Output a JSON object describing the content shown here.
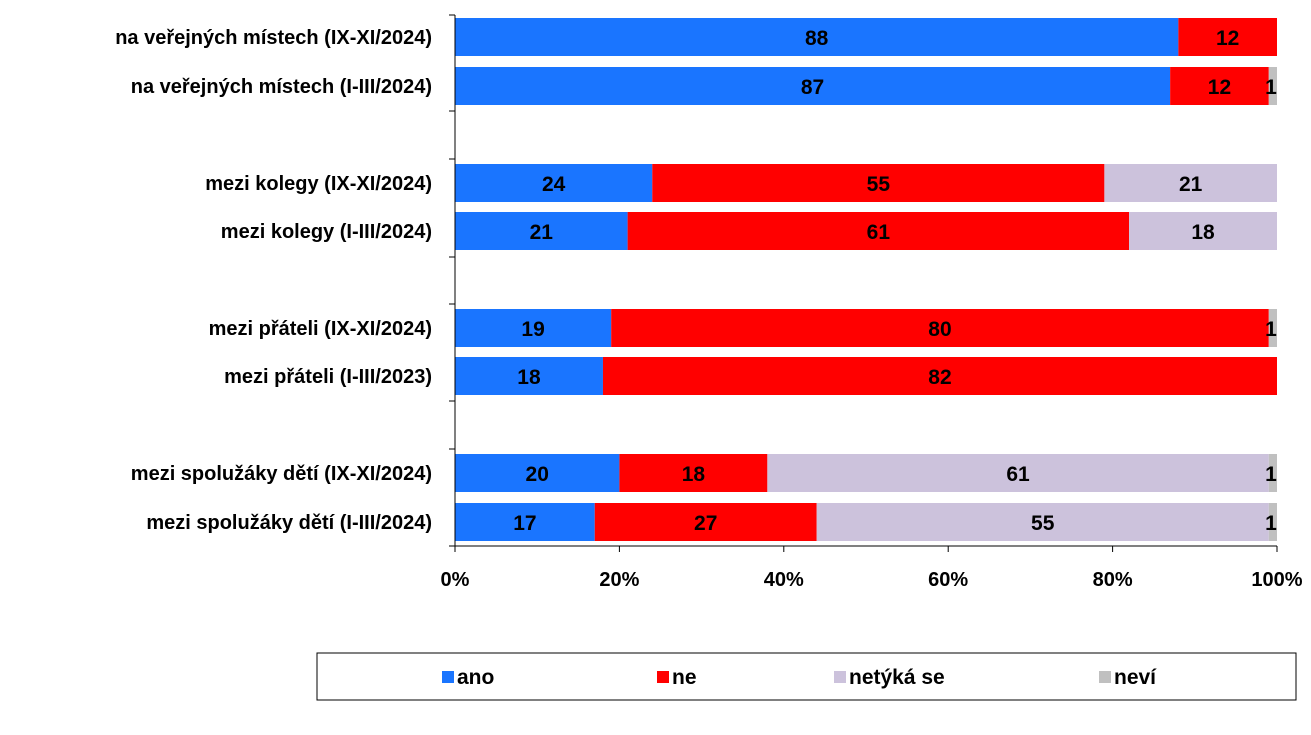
{
  "chart_data": {
    "type": "bar",
    "orientation": "horizontal",
    "stacked": "percent",
    "categories": [
      "na veřejných místech (IX-XI/2024)",
      "na veřejných místech (I-III/2024)",
      "mezi kolegy (IX-XI/2024)",
      "mezi kolegy (I-III/2024)",
      "mezi přáteli (IX-XI/2024)",
      "mezi přáteli (I-III/2023)",
      "mezi spolužáky dětí (IX-XI/2024)",
      "mezi spolužáky dětí (I-III/2024)"
    ],
    "series": [
      {
        "name": "ano",
        "color": "#1a75ff",
        "values": [
          88,
          87,
          24,
          21,
          19,
          18,
          20,
          17
        ]
      },
      {
        "name": "ne",
        "color": "#ff0000",
        "values": [
          12,
          12,
          55,
          61,
          80,
          82,
          18,
          27
        ]
      },
      {
        "name": "netýká se",
        "color": "#ccc2dc",
        "values": [
          0,
          0,
          21,
          18,
          0,
          0,
          61,
          55
        ]
      },
      {
        "name": "neví",
        "color": "#c0c0c0",
        "values": [
          0,
          1,
          0,
          0,
          1,
          0,
          1,
          1
        ]
      }
    ],
    "xlim": [
      0,
      100
    ],
    "xticks": [
      "0%",
      "20%",
      "40%",
      "60%",
      "80%",
      "100%"
    ],
    "legend_position": "bottom",
    "grid": false
  }
}
